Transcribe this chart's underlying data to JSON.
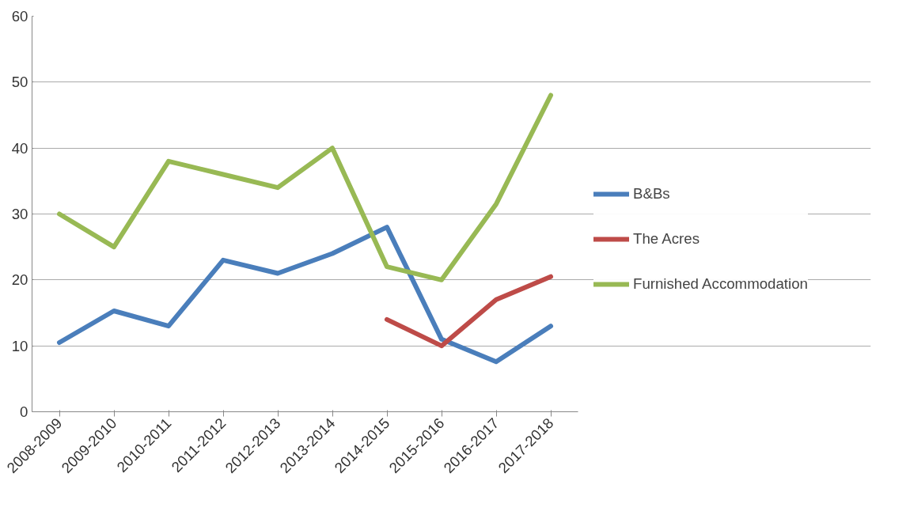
{
  "chart_data": {
    "type": "line",
    "categories": [
      "2008-2009",
      "2009-2010",
      "2010-2011",
      "2011-2012",
      "2012-2013",
      "2013-2014",
      "2014-2015",
      "2015-2016",
      "2016-2017",
      "2017-2018"
    ],
    "series": [
      {
        "name": "B&Bs",
        "color": "#4a7ebb",
        "values": [
          10.5,
          15.3,
          13,
          23,
          21,
          24,
          28,
          11,
          7.6,
          13
        ]
      },
      {
        "name": "The Acres",
        "color": "#be4b48",
        "values": [
          null,
          null,
          null,
          null,
          null,
          null,
          14,
          10,
          17,
          20.5
        ]
      },
      {
        "name": "Furnished Accommodation",
        "color": "#98b954",
        "values": [
          30,
          25,
          38,
          36,
          34,
          40,
          22,
          20,
          31.5,
          48
        ]
      }
    ],
    "ylim": [
      0,
      60
    ],
    "yticks": [
      0,
      10,
      20,
      30,
      40,
      50,
      60
    ],
    "grid": "y",
    "legend": "right",
    "marker": "none",
    "line_style": "solid"
  }
}
